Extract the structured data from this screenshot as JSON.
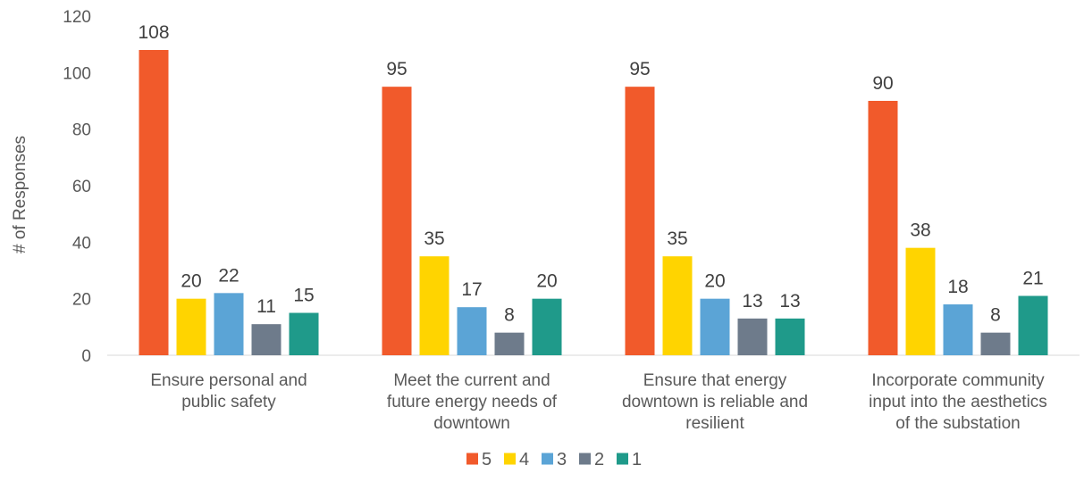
{
  "chart_data": {
    "type": "bar",
    "title": "",
    "xlabel": "",
    "ylabel": "# of Responses",
    "ylim": [
      0,
      120
    ],
    "yticks": [
      0,
      20,
      40,
      60,
      80,
      100,
      120
    ],
    "grid": false,
    "legend_position": "bottom",
    "categories": [
      [
        "Ensure personal and",
        "public safety"
      ],
      [
        "Meet the current and",
        "future energy needs of",
        "downtown"
      ],
      [
        "Ensure that energy",
        "downtown is reliable and",
        "resilient"
      ],
      [
        "Incorporate community",
        "input into the aesthetics",
        "of the substation"
      ]
    ],
    "series": [
      {
        "name": "5",
        "color": "#F15A2B",
        "values": [
          108,
          95,
          95,
          90
        ]
      },
      {
        "name": "4",
        "color": "#FFD400",
        "values": [
          20,
          35,
          35,
          38
        ]
      },
      {
        "name": "3",
        "color": "#5BA4D6",
        "values": [
          22,
          17,
          20,
          18
        ]
      },
      {
        "name": "2",
        "color": "#6E7B8B",
        "values": [
          11,
          8,
          13,
          8
        ]
      },
      {
        "name": "1",
        "color": "#1F9A8A",
        "values": [
          15,
          20,
          13,
          21
        ]
      }
    ]
  }
}
